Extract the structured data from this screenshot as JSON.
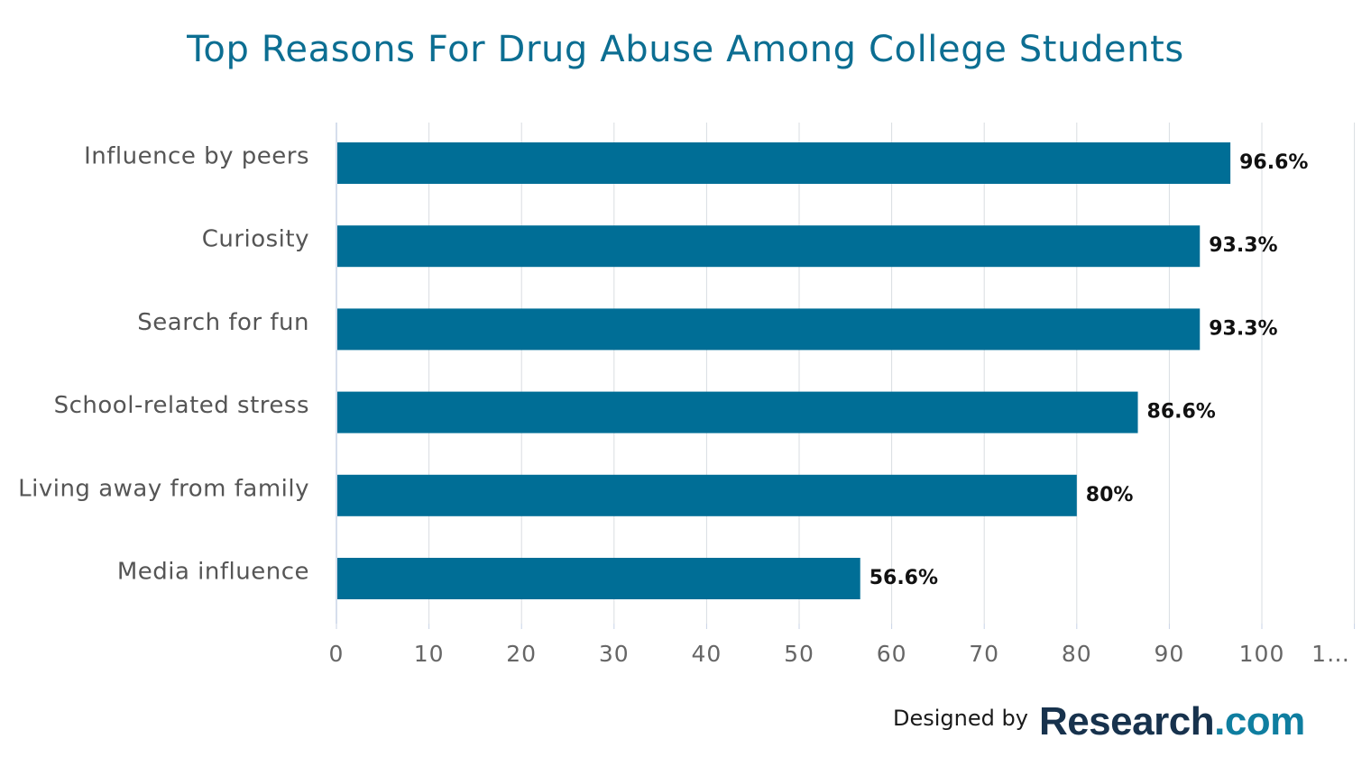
{
  "chart_data": {
    "type": "bar",
    "orientation": "horizontal",
    "title": "Top Reasons For Drug Abuse Among College Students",
    "categories": [
      "Influence by peers",
      "Curiosity",
      "Search for fun",
      "School-related stress",
      "Living away from family",
      "Media influence"
    ],
    "values": [
      96.6,
      93.3,
      93.3,
      86.6,
      80,
      56.6
    ],
    "data_labels": [
      "96.6%",
      "93.3%",
      "93.3%",
      "86.6%",
      "80%",
      "56.6%"
    ],
    "xlim": [
      0,
      110
    ],
    "x_ticks": [
      "0",
      "10",
      "20",
      "30",
      "40",
      "50",
      "60",
      "70",
      "80",
      "90",
      "100",
      "1…"
    ],
    "x_tick_values": [
      0,
      10,
      20,
      30,
      40,
      50,
      60,
      70,
      80,
      90,
      100,
      110
    ],
    "grid": true,
    "bar_color": "#006e96",
    "xlabel": "",
    "ylabel": ""
  },
  "credit": {
    "label": "Designed by",
    "logo_main": "Research",
    "logo_dot": ".",
    "logo_tld": "com"
  },
  "colors": {
    "title": "#0c6e92",
    "bar": "#006e96",
    "grid": "#d9dde2",
    "axis": "#c8d3e6",
    "category_text": "#555555",
    "tick_text": "#666666",
    "data_label": "#111111"
  }
}
